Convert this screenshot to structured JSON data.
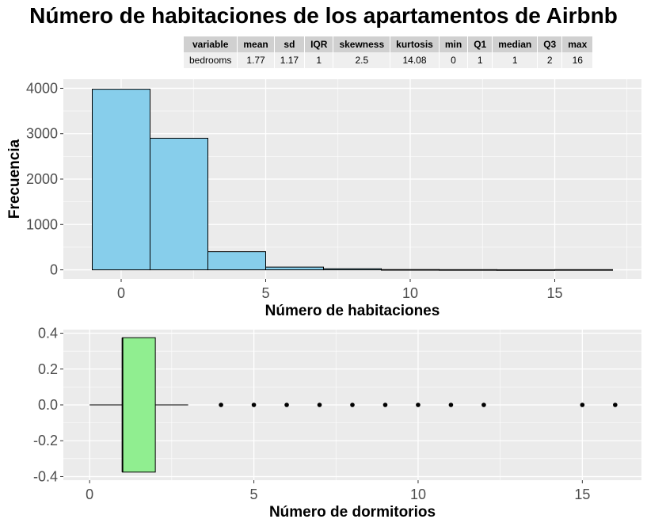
{
  "title": "Número de habitaciones de los apartamentos de Airbnb",
  "summary_table": {
    "headers": [
      "variable",
      "mean",
      "sd",
      "IQR",
      "skewness",
      "kurtosis",
      "min",
      "Q1",
      "median",
      "Q3",
      "max"
    ],
    "row": [
      "bedrooms",
      "1.77",
      "1.17",
      "1",
      "2.5",
      "14.08",
      "0",
      "1",
      "1",
      "2",
      "16"
    ]
  },
  "colors": {
    "panel_background": "#ebebeb",
    "grid": "#ffffff",
    "histogram_fill": "#87ceeb",
    "box_fill": "#90ee90",
    "outline": "#000000"
  },
  "chart_data": [
    {
      "type": "bar",
      "subtype": "histogram",
      "bins": [
        {
          "start": -1,
          "end": 1,
          "count": 3980
        },
        {
          "start": 1,
          "end": 3,
          "count": 2900
        },
        {
          "start": 3,
          "end": 5,
          "count": 400
        },
        {
          "start": 5,
          "end": 7,
          "count": 60
        },
        {
          "start": 7,
          "end": 9,
          "count": 25
        },
        {
          "start": 9,
          "end": 11,
          "count": 6
        },
        {
          "start": 11,
          "end": 13,
          "count": 4
        },
        {
          "start": 13,
          "end": 15,
          "count": 2
        },
        {
          "start": 15,
          "end": 17,
          "count": 4
        }
      ],
      "xlabel": "Número de habitaciones",
      "ylabel": "Frecuencia",
      "xlim": [
        -2,
        18
      ],
      "ylim": [
        -200,
        4200
      ],
      "x_ticks": [
        0,
        5,
        10,
        15
      ],
      "y_ticks": [
        0,
        1000,
        2000,
        3000,
        4000
      ],
      "grid": true
    },
    {
      "type": "boxplot",
      "orientation": "horizontal",
      "stats": {
        "whisker_low": 0,
        "q1": 1,
        "median": 1,
        "q3": 2,
        "whisker_high": 3
      },
      "outliers": [
        4,
        5,
        6,
        7,
        8,
        9,
        10,
        11,
        12,
        15,
        16
      ],
      "xlabel": "Número de dormitorios",
      "xlim": [
        -0.8,
        16.8
      ],
      "ylim": [
        -0.42,
        0.42
      ],
      "x_ticks": [
        0,
        5,
        10,
        15
      ],
      "y_ticks": [
        "-0.4",
        "-0.2",
        "0.0",
        "0.2",
        "0.4"
      ],
      "grid": true
    }
  ]
}
